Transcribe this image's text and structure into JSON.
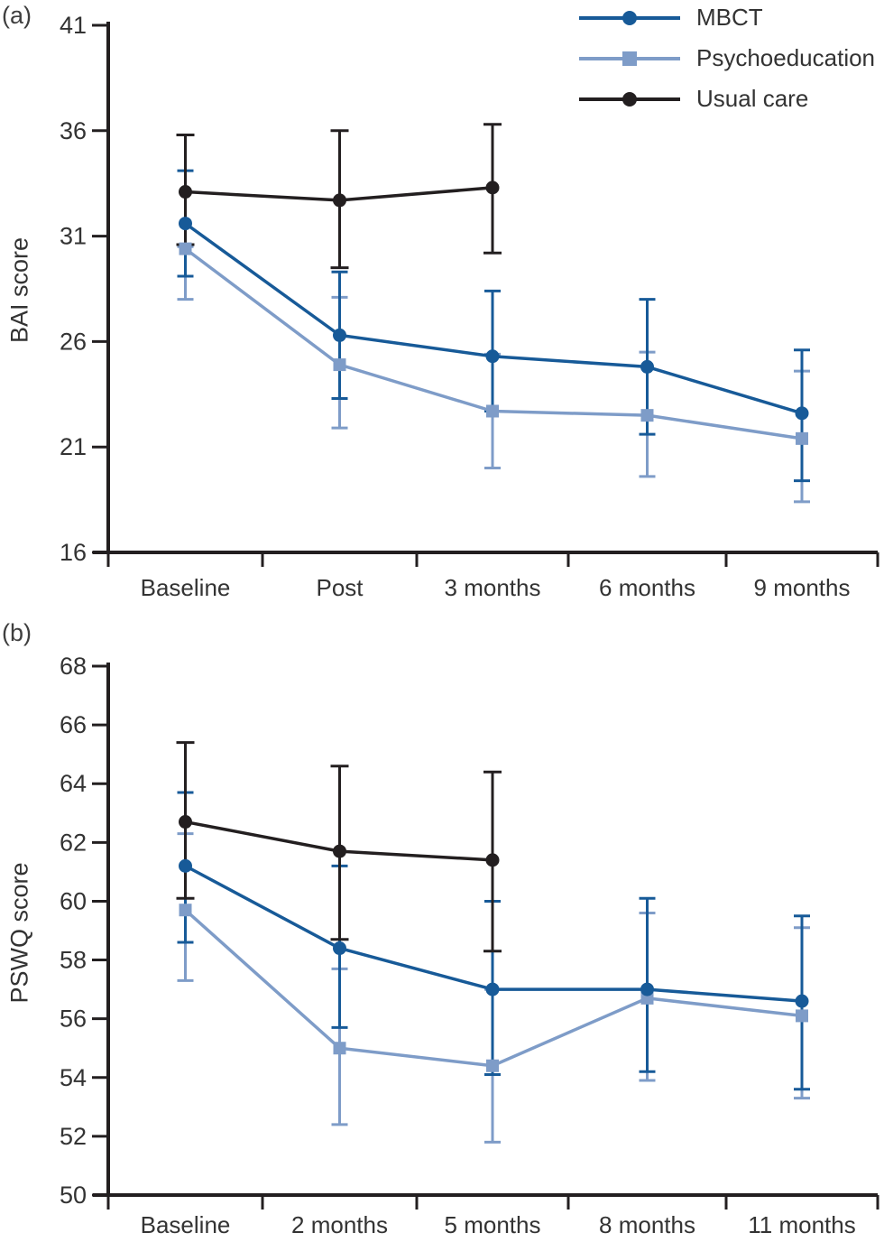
{
  "legend": {
    "items": [
      {
        "label": "MBCT",
        "marker": "circle",
        "color": "#175a98"
      },
      {
        "label": "Psychoeducation",
        "marker": "square",
        "color": "#7e9cc8"
      },
      {
        "label": "Usual care",
        "marker": "circle",
        "color": "#231f20"
      }
    ]
  },
  "colors": {
    "mbct": "#175a98",
    "psychoeducation": "#7e9cc8",
    "usual_care": "#231f20",
    "axis": "#231f20",
    "text": "#333333"
  },
  "chart_data": [
    {
      "type": "line",
      "panel_tag": "(a)",
      "ylabel": "BAI score",
      "ylim": [
        16,
        41
      ],
      "yticks": [
        16,
        21,
        26,
        31,
        36,
        41
      ],
      "grid": false,
      "legend_position": "top-right",
      "error_bars": "95% CI",
      "categories": [
        "Baseline",
        "Post",
        "3 months",
        "6 months",
        "9 months"
      ],
      "series": [
        {
          "name": "MBCT",
          "color": "#175a98",
          "marker": "circle",
          "values": [
            31.6,
            26.3,
            25.3,
            24.8,
            22.6
          ],
          "ci_low": [
            29.1,
            23.3,
            22.7,
            21.6,
            19.4
          ],
          "ci_high": [
            34.1,
            29.3,
            28.4,
            28.0,
            25.6
          ]
        },
        {
          "name": "Psychoeducation",
          "color": "#7e9cc8",
          "marker": "square",
          "values": [
            30.4,
            24.9,
            22.7,
            22.5,
            21.4
          ],
          "ci_low": [
            28.0,
            21.9,
            20.0,
            19.6,
            18.4
          ],
          "ci_high": [
            30.5,
            28.1,
            25.4,
            25.5,
            24.6
          ]
        },
        {
          "name": "Usual care",
          "color": "#231f20",
          "marker": "circle",
          "values": [
            33.1,
            32.7,
            33.3,
            null,
            null
          ],
          "ci_low": [
            30.6,
            29.5,
            30.2,
            null,
            null
          ],
          "ci_high": [
            35.8,
            36.0,
            36.3,
            null,
            null
          ]
        }
      ]
    },
    {
      "type": "line",
      "panel_tag": "(b)",
      "ylabel": "PSWQ score",
      "ylim": [
        50,
        68
      ],
      "yticks": [
        50,
        52,
        54,
        56,
        58,
        60,
        62,
        64,
        66,
        68
      ],
      "grid": false,
      "legend_position": "none",
      "error_bars": "95% CI",
      "categories": [
        "Baseline",
        "2 months",
        "5 months",
        "8 months",
        "11 months"
      ],
      "series": [
        {
          "name": "MBCT",
          "color": "#175a98",
          "marker": "circle",
          "values": [
            61.2,
            58.4,
            57.0,
            57.0,
            56.6
          ],
          "ci_low": [
            58.6,
            55.7,
            54.1,
            54.2,
            53.6
          ],
          "ci_high": [
            63.7,
            61.2,
            60.0,
            60.1,
            59.5
          ]
        },
        {
          "name": "Psychoeducation",
          "color": "#7e9cc8",
          "marker": "square",
          "values": [
            59.7,
            55.0,
            54.4,
            56.7,
            56.1
          ],
          "ci_low": [
            57.3,
            52.4,
            51.8,
            53.9,
            53.3
          ],
          "ci_high": [
            62.3,
            57.7,
            57.0,
            59.6,
            59.1
          ]
        },
        {
          "name": "Usual care",
          "color": "#231f20",
          "marker": "circle",
          "values": [
            62.7,
            61.7,
            61.4,
            null,
            null
          ],
          "ci_low": [
            60.1,
            58.7,
            58.3,
            null,
            null
          ],
          "ci_high": [
            65.4,
            64.6,
            64.4,
            null,
            null
          ]
        }
      ]
    }
  ]
}
